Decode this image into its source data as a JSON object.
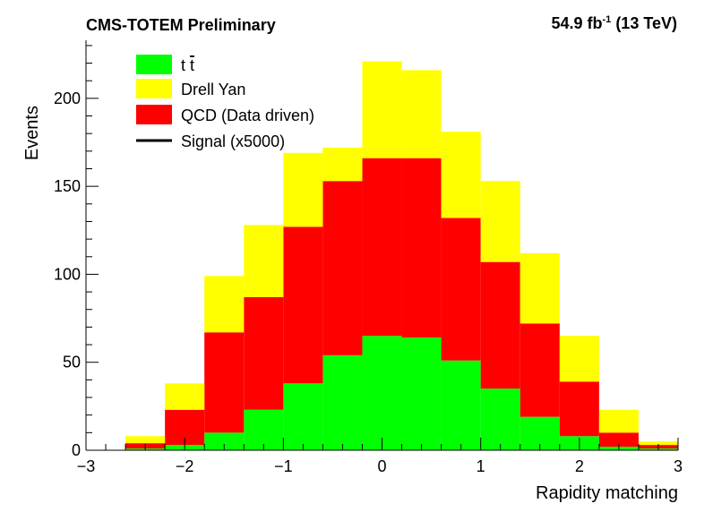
{
  "header": {
    "left": "CMS-TOTEM Preliminary",
    "lumi": "54.9 fb",
    "lumi_exp": "-1",
    "energy": "(13 TeV)"
  },
  "chart_data": {
    "type": "bar",
    "stacked": true,
    "title": "",
    "xlabel": "Rapidity matching",
    "ylabel": "Events",
    "xlim": [
      -3,
      3
    ],
    "ylim": [
      0,
      233
    ],
    "x_ticks": [
      -3,
      -2,
      -1,
      0,
      1,
      2,
      3
    ],
    "x_tick_labels": [
      "−3",
      "−2",
      "−1",
      "0",
      "1",
      "2",
      "3"
    ],
    "y_ticks": [
      0,
      50,
      100,
      150,
      200
    ],
    "y_tick_labels": [
      "0",
      "50",
      "100",
      "150",
      "200"
    ],
    "grid": false,
    "legend_position": "top-left",
    "bin_edges": [
      -3.0,
      -2.6,
      -2.2,
      -1.8,
      -1.4,
      -1.0,
      -0.6,
      -0.2,
      0.2,
      0.6,
      1.0,
      1.4,
      1.8,
      2.2,
      2.6,
      3.0
    ],
    "series": [
      {
        "name": "t t̄",
        "color": "#00ff00",
        "values": [
          0,
          1,
          3,
          10,
          23,
          38,
          54,
          65,
          64,
          51,
          35,
          19,
          8,
          2,
          1
        ]
      },
      {
        "name": "QCD (Data driven)",
        "color": "#ff0000",
        "values": [
          0,
          3,
          20,
          57,
          64,
          89,
          99,
          101,
          102,
          81,
          72,
          53,
          31,
          8,
          2
        ]
      },
      {
        "name": "Drell Yan",
        "color": "#ffff00",
        "values": [
          0,
          4,
          15,
          32,
          41,
          42,
          19,
          55,
          50,
          49,
          46,
          40,
          26,
          13,
          2
        ]
      }
    ],
    "legend": [
      {
        "label": "t",
        "label_tbar": "t",
        "color": "#00ff00",
        "kind": "box"
      },
      {
        "label": "Drell Yan",
        "color": "#ffff00",
        "kind": "box"
      },
      {
        "label": "QCD (Data driven)",
        "color": "#ff0000",
        "kind": "box"
      },
      {
        "label": "Signal (x5000)",
        "color": "#000000",
        "kind": "line"
      }
    ]
  }
}
